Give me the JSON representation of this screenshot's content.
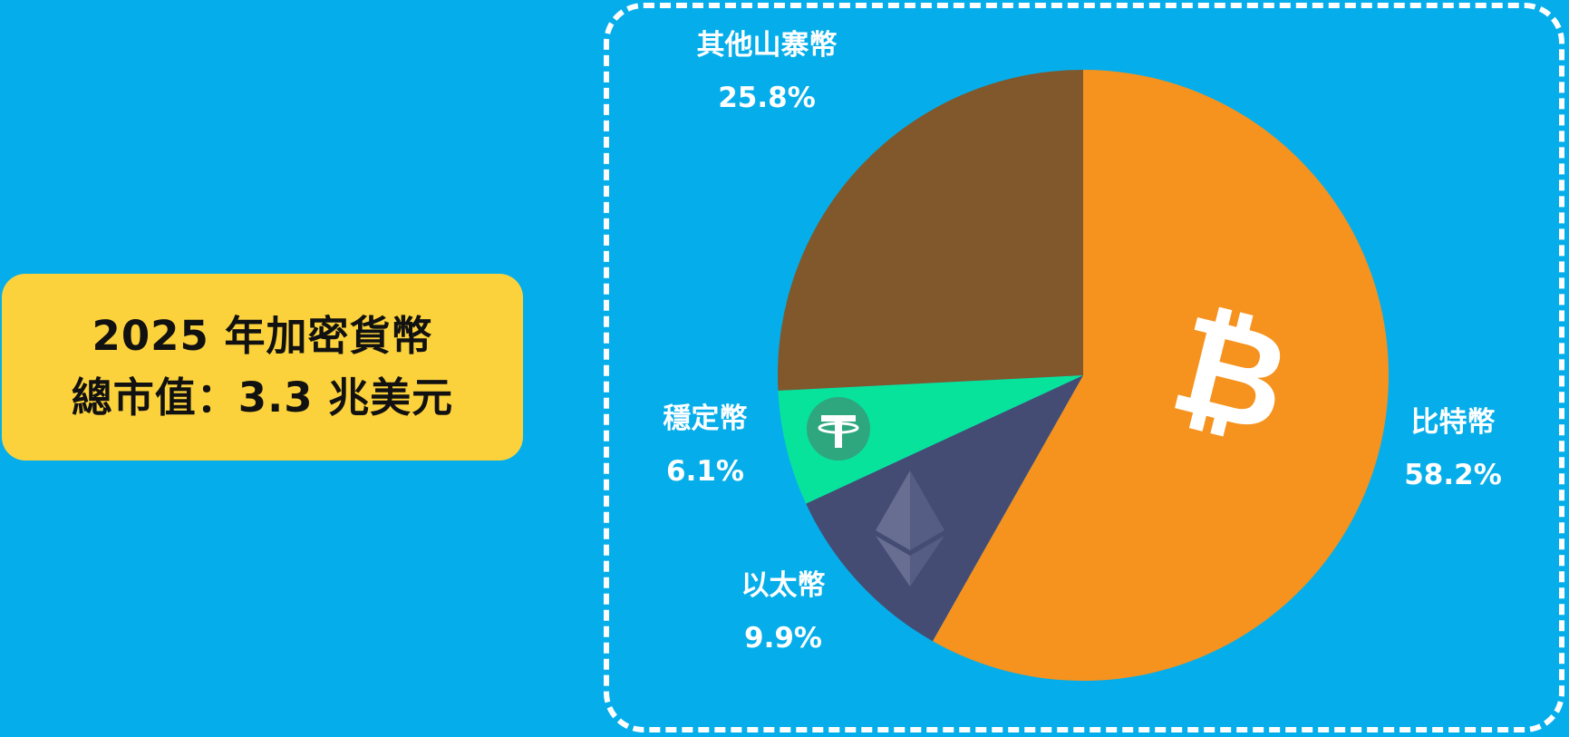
{
  "title": {
    "line1": "2025 年加密貨幣",
    "line2": "總市值：3.3 兆美元"
  },
  "chart_data": {
    "type": "pie",
    "title": "2025 年加密貨幣總市值：3.3 兆美元",
    "slices": [
      {
        "name": "比特幣",
        "value": 58.2,
        "label": "58.2%",
        "color": "#f6921e",
        "icon": "bitcoin-icon"
      },
      {
        "name": "以太幣",
        "value": 9.9,
        "label": "9.9%",
        "color": "#444c74",
        "icon": "ethereum-icon"
      },
      {
        "name": "穩定幣",
        "value": 6.1,
        "label": "6.1%",
        "color": "#08e39c",
        "icon": "tether-icon"
      },
      {
        "name": "其他山寨幣",
        "value": 25.8,
        "label": "25.8%",
        "color": "#80582c",
        "icon": ""
      }
    ],
    "start": "12 o'clock",
    "direction": "clockwise"
  },
  "colors": {
    "background": "#05aeea",
    "title_box": "#fcd23c",
    "frame": "#ffffff"
  }
}
